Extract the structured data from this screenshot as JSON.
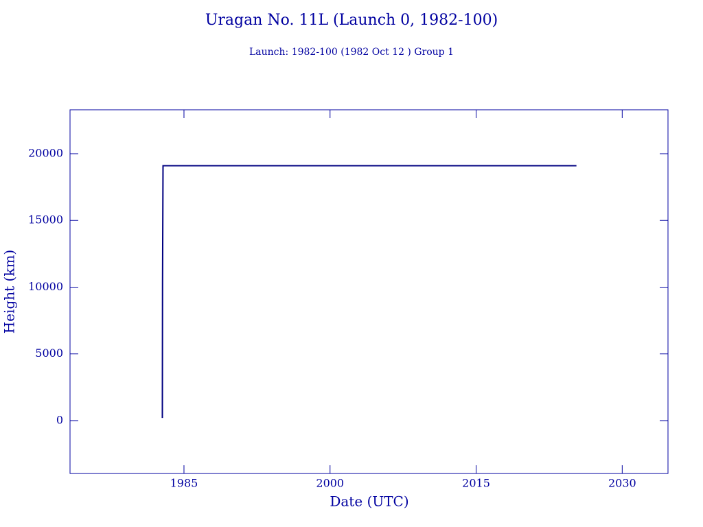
{
  "chart_data": {
    "type": "line",
    "title": "Uragan No. 11L (Launch 0, 1982-100)",
    "subtitle": "Launch: 1982-100  (1982 Oct 12 )  Group 1",
    "x_label": "Date (UTC)",
    "y_label": "Height (km)",
    "x": [
      1982.78,
      1982.8,
      1982.85,
      2025.3
    ],
    "series": [
      {
        "color": "#000080",
        "values": [
          200,
          10300,
          19100,
          19100
        ]
      }
    ],
    "xlim": [
      1973.3,
      2034.7
    ],
    "ylim": [
      -3960,
      23290
    ],
    "xticks": [
      1985,
      2000,
      2015,
      2030
    ],
    "yticks": [
      0,
      5000,
      10000,
      15000,
      20000
    ]
  }
}
